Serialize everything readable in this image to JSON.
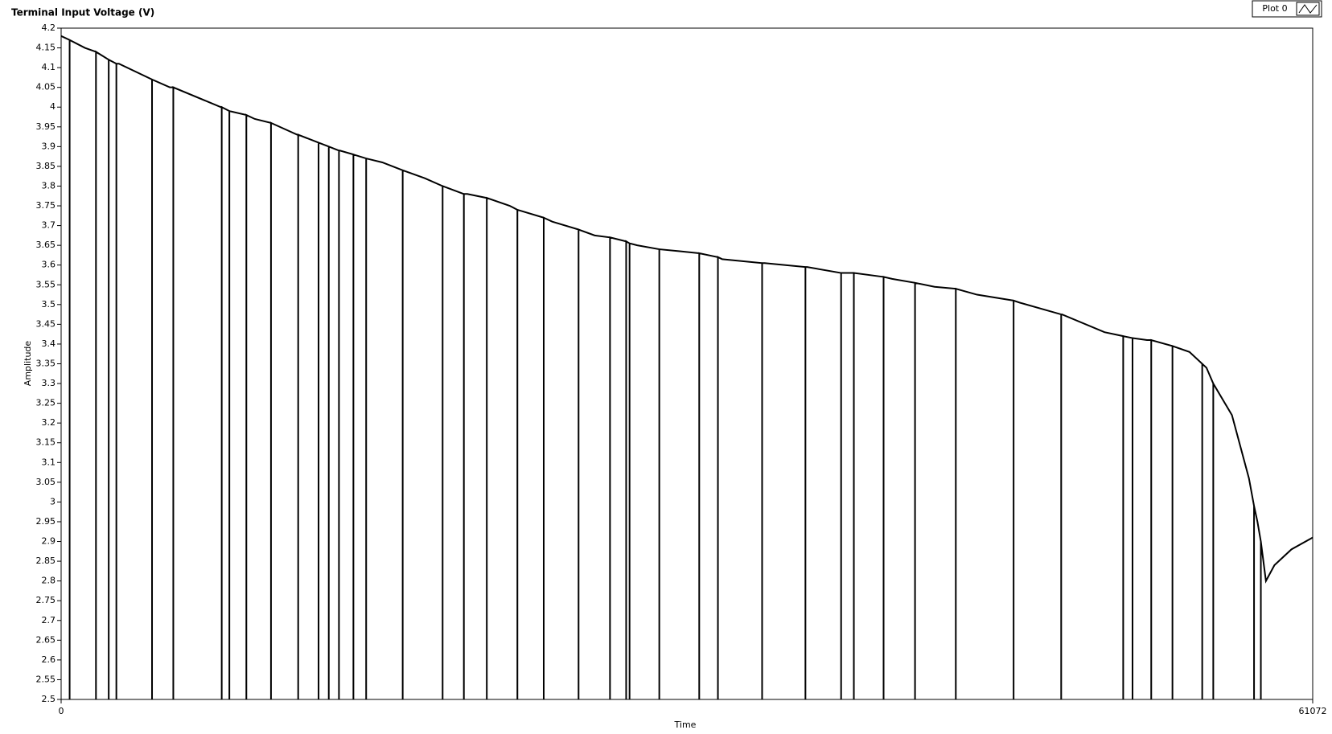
{
  "chart_data": {
    "type": "line",
    "title": "Terminal Input Voltage (V)",
    "x_label": "Time",
    "y_label": "Amplitude",
    "legend": "top-right",
    "grid": false,
    "xlim": [
      0,
      61072
    ],
    "xticks": [
      0,
      61072
    ],
    "ylim": [
      2.5,
      4.2
    ],
    "yticks": [
      2.5,
      2.55,
      2.6,
      2.65,
      2.7,
      2.75,
      2.8,
      2.85,
      2.9,
      2.95,
      3,
      3.05,
      3.1,
      3.15,
      3.2,
      3.25,
      3.3,
      3.35,
      3.4,
      3.45,
      3.5,
      3.55,
      3.6,
      3.65,
      3.7,
      3.75,
      3.8,
      3.85,
      3.9,
      3.95,
      4,
      4.05,
      4.1,
      4.15,
      4.2
    ],
    "x": [
      0,
      415,
      415,
      415,
      1161,
      1700,
      1700,
      1700,
      2322,
      2322,
      2322,
      2695,
      2695,
      2695,
      2819,
      4436,
      4436,
      4436,
      5307,
      5473,
      5473,
      5473,
      7794,
      7836,
      7836,
      7836,
      8209,
      8209,
      8209,
      9038,
      9038,
      9038,
      9453,
      10241,
      10241,
      10241,
      11526,
      11567,
      11567,
      11567,
      12562,
      12562,
      12562,
      13060,
      13060,
      13060,
      13557,
      13557,
      13557,
      13599,
      14262,
      14262,
      14262,
      14884,
      14884,
      14884,
      15672,
      16667,
      16667,
      16667,
      17745,
      18615,
      18615,
      18615,
      19652,
      19652,
      19652,
      19818,
      20771,
      20771,
      20771,
      21891,
      22264,
      22264,
      22264,
      23549,
      23549,
      23549,
      23964,
      25249,
      25249,
      25249,
      26037,
      26783,
      26783,
      26783,
      27571,
      27571,
      27571,
      27737,
      27737,
      27737,
      28110,
      29188,
      29188,
      29188,
      30183,
      31137,
      31137,
      31137,
      32049,
      32049,
      32049,
      32256,
      34205,
      34205,
      34205,
      34329,
      36319,
      36319,
      36319,
      36402,
      38060,
      38060,
      38060,
      38475,
      38682,
      38682,
      38682,
      40133,
      40133,
      40133,
      40548,
      41667,
      41667,
      41667,
      42621,
      43657,
      43657,
      43657,
      44694,
      46477,
      46477,
      46477,
      46767,
      48799,
      48799,
      48799,
      48840,
      50913,
      51825,
      51825,
      51825,
      52281,
      52281,
      52281,
      52986,
      53193,
      53193,
      53193,
      54229,
      54229,
      54229,
      55059,
      55681,
      55681,
      55681,
      55888,
      56220,
      56220,
      56220,
      57132,
      57961,
      58210,
      58210,
      58210,
      58376,
      58542,
      58542,
      58542,
      58790,
      59205,
      60034,
      61072
    ],
    "series": [
      {
        "name": "Plot 0",
        "color": "#000000",
        "values": [
          4.18,
          4.17,
          2.5,
          4.17,
          4.15,
          4.14,
          2.5,
          4.14,
          4.12,
          2.5,
          4.12,
          4.11,
          2.5,
          4.11,
          4.11,
          4.07,
          2.5,
          4.07,
          4.05,
          4.05,
          2.5,
          4.05,
          4.0,
          4.0,
          2.5,
          4.0,
          3.99,
          2.5,
          3.99,
          3.98,
          2.5,
          3.98,
          3.97,
          3.96,
          2.5,
          3.96,
          3.93,
          3.93,
          2.5,
          3.93,
          3.91,
          2.5,
          3.91,
          3.9,
          2.5,
          3.9,
          3.89,
          2.5,
          3.89,
          3.89,
          3.88,
          2.5,
          3.88,
          3.87,
          2.5,
          3.87,
          3.86,
          3.84,
          2.5,
          3.84,
          3.82,
          3.8,
          2.5,
          3.8,
          3.78,
          2.5,
          3.78,
          3.78,
          3.77,
          2.5,
          3.77,
          3.75,
          3.74,
          2.5,
          3.74,
          3.72,
          2.5,
          3.72,
          3.71,
          3.69,
          2.5,
          3.69,
          3.675,
          3.67,
          2.5,
          3.67,
          3.66,
          2.5,
          3.66,
          3.655,
          2.5,
          3.655,
          3.65,
          3.64,
          2.5,
          3.64,
          3.635,
          3.63,
          2.5,
          3.63,
          3.62,
          2.5,
          3.62,
          3.615,
          3.605,
          2.5,
          3.605,
          3.605,
          3.595,
          2.5,
          3.595,
          3.595,
          3.58,
          2.5,
          3.58,
          3.58,
          3.58,
          2.5,
          3.58,
          3.57,
          2.5,
          3.57,
          3.565,
          3.555,
          2.5,
          3.555,
          3.545,
          3.54,
          2.5,
          3.54,
          3.525,
          3.51,
          2.5,
          3.51,
          3.505,
          3.475,
          2.5,
          3.475,
          3.475,
          3.43,
          3.42,
          2.5,
          3.42,
          3.415,
          2.5,
          3.415,
          3.41,
          3.41,
          2.5,
          3.41,
          3.395,
          2.5,
          3.395,
          3.38,
          3.35,
          2.5,
          3.35,
          3.34,
          3.3,
          2.5,
          3.3,
          3.22,
          3.06,
          2.99,
          2.5,
          2.99,
          2.95,
          2.9,
          2.5,
          2.9,
          2.8,
          2.84,
          2.88,
          2.91
        ]
      }
    ]
  }
}
